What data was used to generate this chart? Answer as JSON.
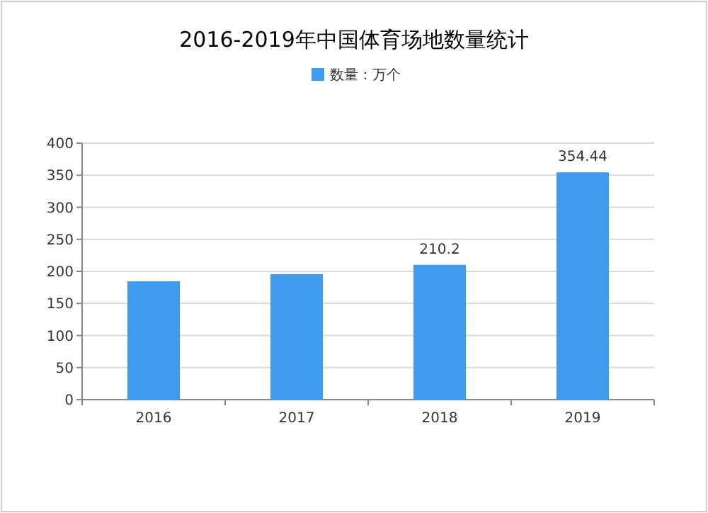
{
  "chart_data": {
    "type": "bar",
    "title": "2016-2019年中国体育场地数量统计",
    "categories": [
      "2016",
      "2017",
      "2018",
      "2019"
    ],
    "series": [
      {
        "name": "数量：万个",
        "color": "#3d9cf0",
        "values": [
          184.5,
          195.7,
          210.2,
          354.44
        ],
        "value_labels": [
          null,
          null,
          "210.2",
          "354.44"
        ]
      }
    ],
    "ylim": [
      0,
      400
    ],
    "yticks": [
      0,
      50,
      100,
      150,
      200,
      250,
      300,
      350,
      400
    ],
    "grid": "y",
    "legend": "top"
  }
}
